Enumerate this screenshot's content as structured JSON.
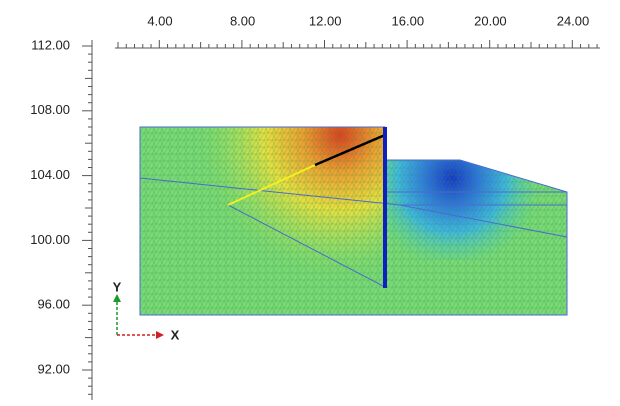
{
  "top_ruler": {
    "labels": [
      "4.00",
      "8.00",
      "12.00",
      "16.00",
      "20.00",
      "24.00"
    ]
  },
  "left_ruler": {
    "labels": [
      "112.00",
      "108.00",
      "104.00",
      "100.00",
      "96.00",
      "92.00"
    ]
  },
  "axes": {
    "x": "X",
    "y": "Y"
  }
}
